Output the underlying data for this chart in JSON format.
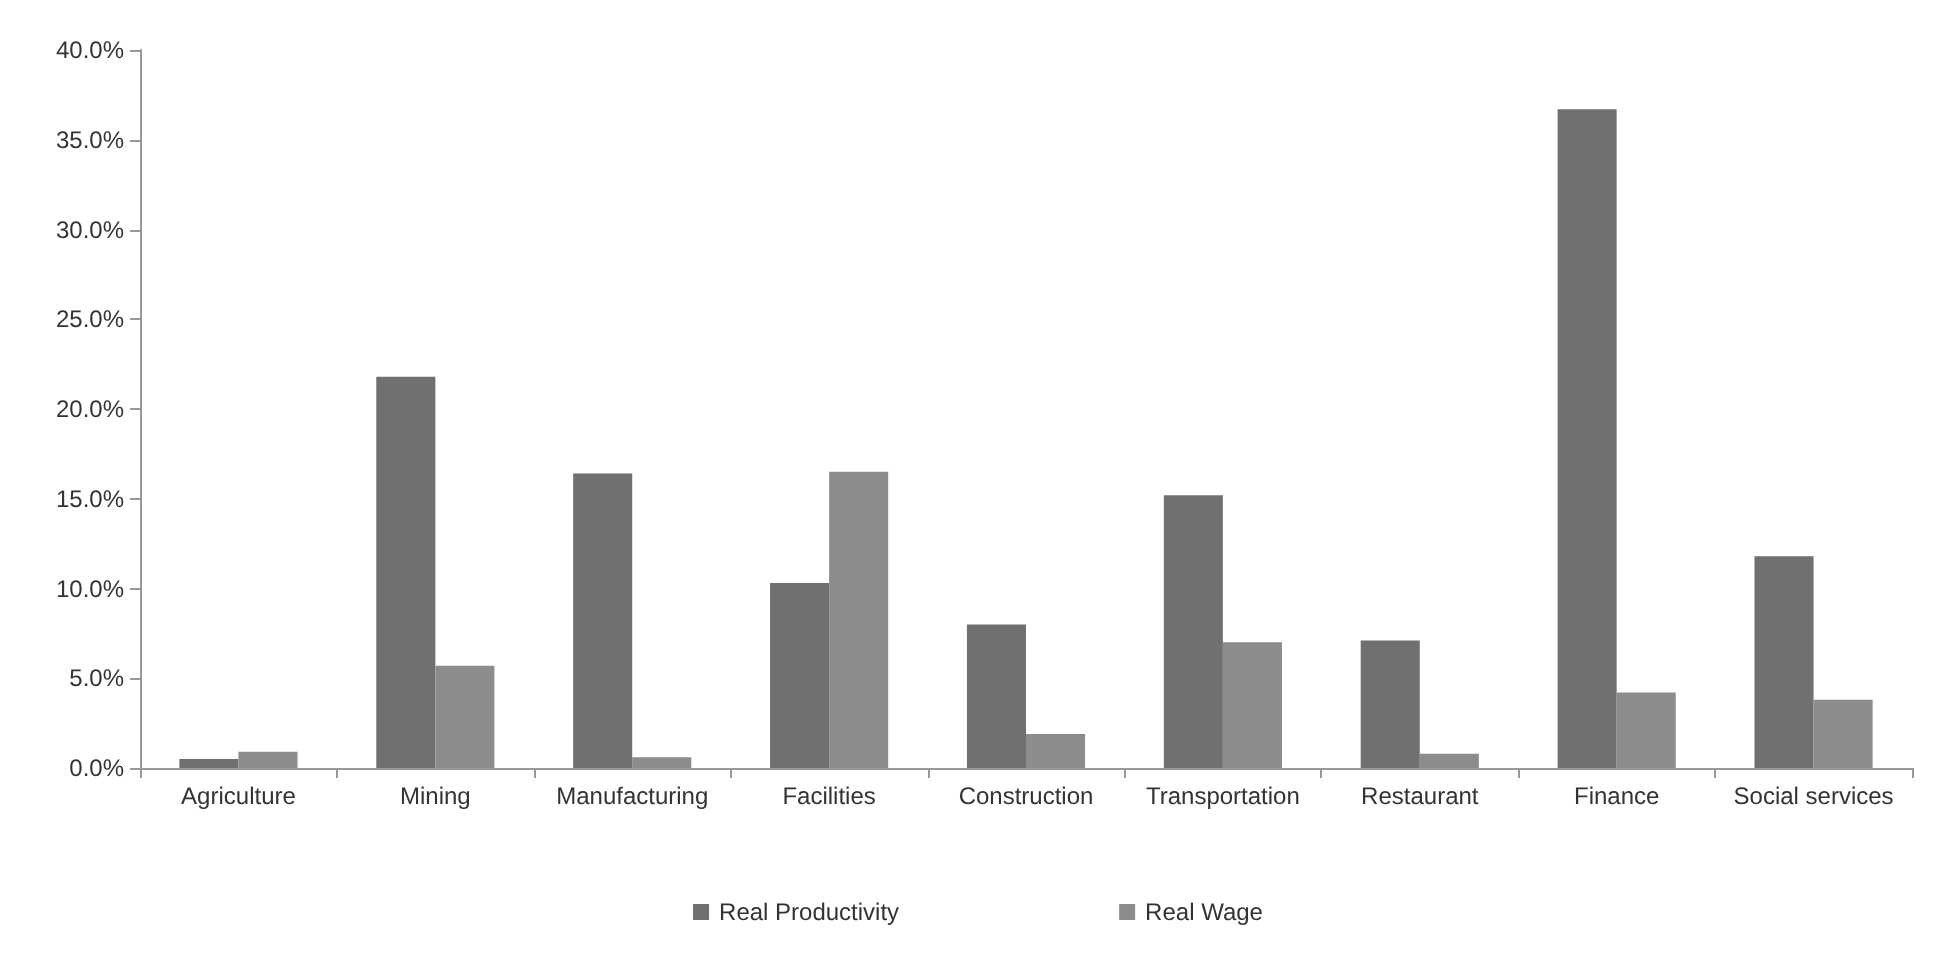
{
  "chart_data": {
    "type": "bar",
    "categories": [
      "Agriculture",
      "Mining",
      "Manufacturing",
      "Facilities",
      "Construction",
      "Transportation",
      "Restaurant",
      "Finance",
      "Social services"
    ],
    "series": [
      {
        "name": "Real Productivity",
        "color": "#707070",
        "values": [
          0.5,
          21.8,
          16.4,
          10.3,
          8.0,
          15.2,
          7.1,
          36.7,
          11.8
        ]
      },
      {
        "name": "Real Wage",
        "color": "#8c8c8c",
        "values": [
          0.9,
          5.7,
          0.6,
          16.5,
          1.9,
          7.0,
          0.8,
          4.2,
          3.8
        ]
      }
    ],
    "ylim": [
      0,
      40
    ],
    "yticks": [
      {
        "value": 0,
        "label": "0.0%"
      },
      {
        "value": 5,
        "label": "5.0%"
      },
      {
        "value": 10,
        "label": "10.0%"
      },
      {
        "value": 15,
        "label": "15.0%"
      },
      {
        "value": 20,
        "label": "20.0%"
      },
      {
        "value": 25,
        "label": "25.0%"
      },
      {
        "value": 30,
        "label": "30.0%"
      },
      {
        "value": 35,
        "label": "35.0%"
      },
      {
        "value": 40,
        "label": "40.0%"
      }
    ],
    "grid": false,
    "legend": "bottom"
  }
}
